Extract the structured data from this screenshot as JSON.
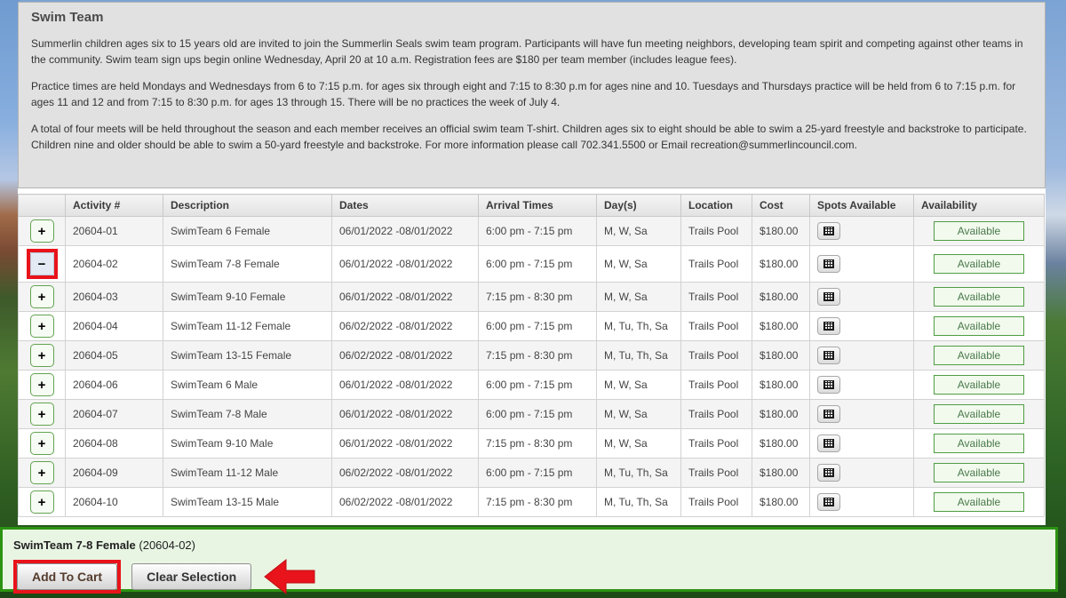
{
  "page": {
    "title": "Swim Team",
    "paragraphs": [
      "Summerlin children ages six to 15 years old are invited to join the Summerlin Seals swim team program. Participants will have fun meeting neighbors, developing team spirit and competing against other teams in the community. Swim team sign ups begin online Wednesday, April 20 at 10 a.m. Registration fees are $180 per team member (includes league fees).",
      "Practice times are held Mondays and Wednesdays from 6 to 7:15 p.m. for ages six through eight and 7:15 to 8:30 p.m for ages nine and 10. Tuesdays and Thursdays practice will be held from 6 to 7:15 p.m. for ages 11 and 12 and from 7:15 to 8:30 p.m. for ages 13 through 15. There will be no practices the week of July 4.",
      "A total of four meets will be held throughout the season and each member receives an official swim team T-shirt. Children ages six to eight should be able to swim a 25-yard freestyle and backstroke to participate. Children nine and older should be able to swim a 50-yard freestyle and backstroke. For more information please call 702.341.5500 or Email recreation@summerlincouncil.com."
    ]
  },
  "table": {
    "columns": [
      "",
      "Activity #",
      "Description",
      "Dates",
      "Arrival Times",
      "Day(s)",
      "Location",
      "Cost",
      "Spots Available",
      "Availability"
    ],
    "rows": [
      {
        "activity": "20604-01",
        "description": "SwimTeam 6 Female",
        "dates": "06/01/2022 -08/01/2022",
        "arrival": "6:00 pm - 7:15 pm",
        "days": "M, W, Sa",
        "location": "Trails Pool",
        "cost": "$180.00",
        "availability": "Available",
        "selected": false
      },
      {
        "activity": "20604-02",
        "description": "SwimTeam 7-8 Female",
        "dates": "06/01/2022 -08/01/2022",
        "arrival": "6:00 pm - 7:15 pm",
        "days": "M, W, Sa",
        "location": "Trails Pool",
        "cost": "$180.00",
        "availability": "Available",
        "selected": true
      },
      {
        "activity": "20604-03",
        "description": "SwimTeam 9-10 Female",
        "dates": "06/01/2022 -08/01/2022",
        "arrival": "7:15 pm - 8:30 pm",
        "days": "M, W, Sa",
        "location": "Trails Pool",
        "cost": "$180.00",
        "availability": "Available",
        "selected": false
      },
      {
        "activity": "20604-04",
        "description": "SwimTeam 11-12 Female",
        "dates": "06/02/2022 -08/01/2022",
        "arrival": "6:00 pm - 7:15 pm",
        "days": "M, Tu, Th, Sa",
        "location": "Trails Pool",
        "cost": "$180.00",
        "availability": "Available",
        "selected": false
      },
      {
        "activity": "20604-05",
        "description": "SwimTeam 13-15 Female",
        "dates": "06/02/2022 -08/01/2022",
        "arrival": "7:15 pm - 8:30 pm",
        "days": "M, Tu, Th, Sa",
        "location": "Trails Pool",
        "cost": "$180.00",
        "availability": "Available",
        "selected": false
      },
      {
        "activity": "20604-06",
        "description": "SwimTeam 6 Male",
        "dates": "06/01/2022 -08/01/2022",
        "arrival": "6:00 pm - 7:15 pm",
        "days": "M, W, Sa",
        "location": "Trails Pool",
        "cost": "$180.00",
        "availability": "Available",
        "selected": false
      },
      {
        "activity": "20604-07",
        "description": "SwimTeam 7-8 Male",
        "dates": "06/01/2022 -08/01/2022",
        "arrival": "6:00 pm - 7:15 pm",
        "days": "M, W, Sa",
        "location": "Trails Pool",
        "cost": "$180.00",
        "availability": "Available",
        "selected": false
      },
      {
        "activity": "20604-08",
        "description": "SwimTeam 9-10 Male",
        "dates": "06/01/2022 -08/01/2022",
        "arrival": "7:15 pm - 8:30 pm",
        "days": "M, W, Sa",
        "location": "Trails Pool",
        "cost": "$180.00",
        "availability": "Available",
        "selected": false
      },
      {
        "activity": "20604-09",
        "description": "SwimTeam 11-12 Male",
        "dates": "06/02/2022 -08/01/2022",
        "arrival": "6:00 pm - 7:15 pm",
        "days": "M, Tu, Th, Sa",
        "location": "Trails Pool",
        "cost": "$180.00",
        "availability": "Available",
        "selected": false
      },
      {
        "activity": "20604-10",
        "description": "SwimTeam 13-15 Male",
        "dates": "06/02/2022 -08/01/2022",
        "arrival": "7:15 pm - 8:30 pm",
        "days": "M, Tu, Th, Sa",
        "location": "Trails Pool",
        "cost": "$180.00",
        "availability": "Available",
        "selected": false
      }
    ]
  },
  "icons": {
    "plus": "+",
    "minus": "−",
    "grid": "spots-grid-icon",
    "red_arrow": "red-arrow-left"
  },
  "selection_panel": {
    "selected_name": "SwimTeam 7-8 Female",
    "selected_code": "(20604-02)",
    "add_to_cart_label": "Add To Cart",
    "clear_selection_label": "Clear Selection"
  },
  "colors": {
    "annotation_red": "#e8131b",
    "panel_green_border": "#2c9212",
    "panel_green_bg": "#e8f5e3",
    "available_border": "#4f9e43",
    "plus_button_border": "#63a351",
    "info_box_bg": "#e1e1e1"
  }
}
